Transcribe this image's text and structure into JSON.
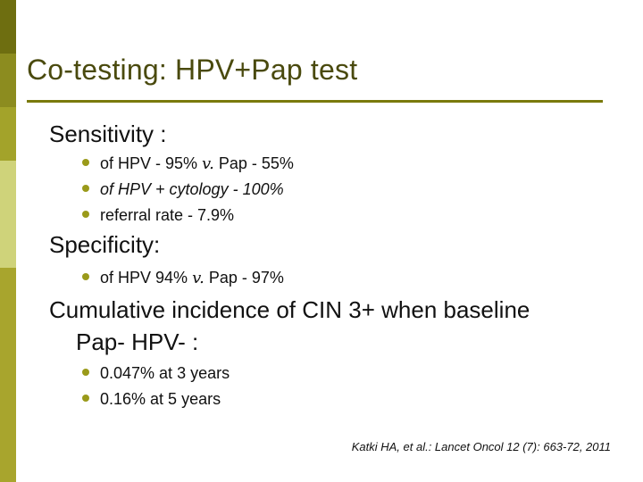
{
  "slide": {
    "title": "Co-testing: HPV+Pap test",
    "sections": [
      {
        "heading": "Sensitivity :",
        "bullets": [
          {
            "pre": "of HPV - 95% ",
            "vs": "v.",
            "post": " Pap - 55%"
          },
          {
            "text": "of HPV + cytology - 100%"
          },
          {
            "text": "referral rate - 7.9%"
          }
        ]
      },
      {
        "heading": "Specificity:",
        "bullets": [
          {
            "pre": "of HPV 94% ",
            "vs": "v.",
            "post": " Pap - 97%"
          }
        ]
      },
      {
        "heading": "Cumulative incidence of CIN 3+ when baseline",
        "heading_cont": "Pap- HPV- :",
        "bullets": [
          {
            "text": "0.047% at 3 years"
          },
          {
            "text": "0.16% at 5 years"
          }
        ]
      }
    ],
    "citation": "Katki HA, et al.: Lancet Oncol 12 (7): 663-72, 2011"
  },
  "colors": {
    "title": "#4a4a0e",
    "rule": "#7a7a0c",
    "bullet": "#9a9a1a",
    "stripe": [
      "#6e6e10",
      "#8c8c1f",
      "#a3a32a",
      "#cfd37a",
      "#a8a52d"
    ]
  }
}
